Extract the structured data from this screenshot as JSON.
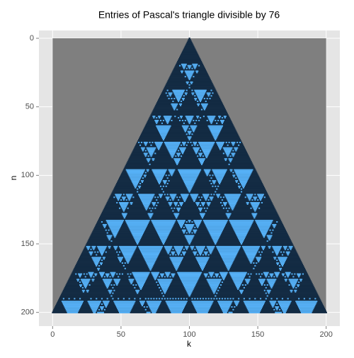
{
  "chart_data": {
    "type": "pascal-divisibility",
    "title": "Entries of Pascal's triangle divisible by 76",
    "divisor": 76,
    "rows": 200,
    "x_label": "k",
    "y_label": "n",
    "xlim": [
      -10,
      210
    ],
    "ylim": [
      -5.7,
      210
    ],
    "y_reversed": true,
    "xticks": [
      0,
      50,
      100,
      150,
      200
    ],
    "yticks": [
      0,
      50,
      100,
      150,
      200
    ],
    "grid": true,
    "background_color": "#7f7f7f",
    "color_not_divisible": "#132b43",
    "color_divisible": "#56b1f7"
  }
}
